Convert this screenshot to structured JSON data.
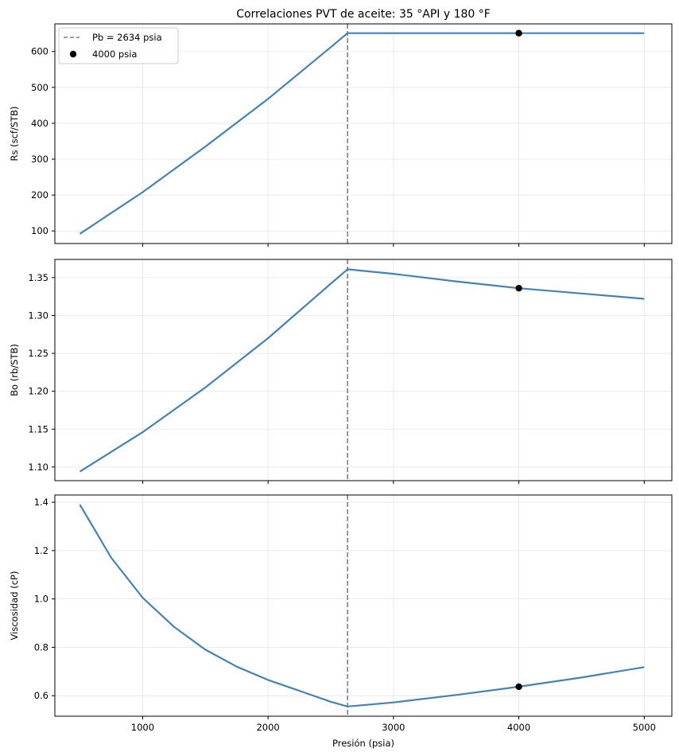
{
  "chart_data": {
    "type": "line",
    "title": "Correlaciones PVT de aceite: 35 °API y 180 °F",
    "xlabel": "Presión (psia)",
    "x_ticks": [
      1000,
      2000,
      3000,
      4000,
      5000
    ],
    "xlim": [
      300,
      5220
    ],
    "grid": true,
    "colors": {
      "curve": "#4682b4",
      "pb_line": "#808080",
      "point": "#000000"
    },
    "legend": {
      "placement": "top-left",
      "pb_label": "Pb = 2634 psia",
      "point_label": "4000 psia"
    },
    "bubble_point_pressure": 2634,
    "selected_pressure": 4000,
    "panels": [
      {
        "id": "rs",
        "ylabel": "Rs (scf/STB)",
        "ylim": [
          65,
          677
        ],
        "y_ticks": [
          100,
          200,
          300,
          400,
          500,
          600
        ],
        "y_tick_labels": [
          "100",
          "200",
          "300",
          "400",
          "500",
          "600"
        ],
        "x": [
          500,
          1000,
          1500,
          2000,
          2500,
          2634,
          3000,
          3500,
          4000,
          4500,
          5000
        ],
        "y": [
          92,
          208,
          335,
          468,
          612,
          651,
          651,
          651,
          651,
          651,
          651
        ],
        "point": {
          "x": 4000,
          "y": 651
        }
      },
      {
        "id": "bo",
        "ylabel": "Bo (rb/STB)",
        "ylim": [
          1.082,
          1.374
        ],
        "y_ticks": [
          1.1,
          1.15,
          1.2,
          1.25,
          1.3,
          1.35
        ],
        "y_tick_labels": [
          "1.10",
          "1.15",
          "1.20",
          "1.25",
          "1.30",
          "1.35"
        ],
        "x": [
          500,
          1000,
          1500,
          2000,
          2500,
          2634,
          3000,
          3500,
          4000,
          4500,
          5000
        ],
        "y": [
          1.094,
          1.146,
          1.205,
          1.27,
          1.342,
          1.361,
          1.355,
          1.345,
          1.336,
          1.329,
          1.322
        ],
        "point": {
          "x": 4000,
          "y": 1.336
        }
      },
      {
        "id": "mu",
        "ylabel": "Viscosidad (cP)",
        "ylim": [
          0.515,
          1.43
        ],
        "y_ticks": [
          0.6,
          0.8,
          1.0,
          1.2,
          1.4
        ],
        "y_tick_labels": [
          "0.6",
          "0.8",
          "1.0",
          "1.2",
          "1.4"
        ],
        "x": [
          500,
          750,
          1000,
          1250,
          1500,
          1750,
          2000,
          2250,
          2500,
          2634,
          3000,
          3500,
          4000,
          4500,
          5000
        ],
        "y": [
          1.39,
          1.17,
          1.005,
          0.885,
          0.79,
          0.72,
          0.665,
          0.62,
          0.575,
          0.555,
          0.572,
          0.603,
          0.637,
          0.675,
          0.718
        ],
        "point": {
          "x": 4000,
          "y": 0.637
        }
      }
    ]
  }
}
